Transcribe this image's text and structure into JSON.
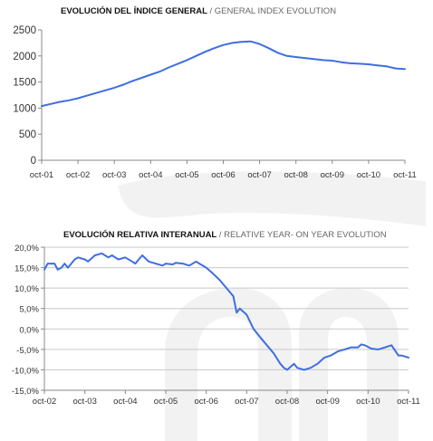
{
  "colors": {
    "line": "#3f6ee0",
    "axis": "#888888",
    "grid": "#c8c8c8",
    "watermark": "#f0f0f0"
  },
  "chart_data": [
    {
      "type": "line",
      "title_main": "EVOLUCIÓN DEL ÍNDICE GENERAL",
      "title_sep": " / ",
      "title_secondary": "GENERAL INDEX EVOLUTION",
      "xlabel": "",
      "ylabel": "",
      "ylim": [
        0,
        2500
      ],
      "yticks": [
        0,
        500,
        1000,
        1500,
        2000,
        2500
      ],
      "ytick_labels": [
        "0",
        "500",
        "1000",
        "1500",
        "2000",
        "2500"
      ],
      "xlim": [
        2001.75,
        2011.75
      ],
      "xticks": [
        2001.75,
        2002.75,
        2003.75,
        2004.75,
        2005.75,
        2006.75,
        2007.75,
        2008.75,
        2009.75,
        2010.75,
        2011.75
      ],
      "xtick_labels": [
        "oct-01",
        "oct-02",
        "oct-03",
        "oct-04",
        "oct-05",
        "oct-06",
        "oct-07",
        "oct-08",
        "oct-09",
        "oct-10",
        "oct-11"
      ],
      "grid": false,
      "series": [
        {
          "x": [
            2001.75,
            2002.0,
            2002.25,
            2002.5,
            2002.75,
            2003.0,
            2003.25,
            2003.5,
            2003.75,
            2004.0,
            2004.25,
            2004.5,
            2004.75,
            2005.0,
            2005.25,
            2005.5,
            2005.75,
            2006.0,
            2006.25,
            2006.5,
            2006.75,
            2007.0,
            2007.25,
            2007.5,
            2007.75,
            2008.0,
            2008.25,
            2008.5,
            2008.75,
            2009.0,
            2009.25,
            2009.5,
            2009.75,
            2010.0,
            2010.25,
            2010.5,
            2010.75,
            2011.0,
            2011.25,
            2011.5,
            2011.75
          ],
          "values": [
            1040,
            1080,
            1120,
            1150,
            1190,
            1240,
            1290,
            1340,
            1390,
            1450,
            1520,
            1580,
            1640,
            1700,
            1780,
            1850,
            1920,
            2000,
            2080,
            2150,
            2210,
            2250,
            2270,
            2280,
            2230,
            2150,
            2060,
            2000,
            1980,
            1960,
            1940,
            1920,
            1910,
            1880,
            1860,
            1850,
            1840,
            1820,
            1800,
            1760,
            1750
          ]
        }
      ]
    },
    {
      "type": "line",
      "title_main": "EVOLUCIÓN RELATIVA INTERANUAL",
      "title_sep": " / ",
      "title_secondary": "RELATIVE YEAR- ON YEAR EVOLUTION",
      "xlabel": "",
      "ylabel": "",
      "ylim": [
        -15,
        20
      ],
      "yticks": [
        -15,
        -10,
        -5,
        0,
        5,
        10,
        15,
        20
      ],
      "ytick_labels": [
        "-15,0%",
        "-10,0%",
        "-5,0%",
        "0,0%",
        "5,0%",
        "10,0%",
        "15,0%",
        "20,0%"
      ],
      "xlim": [
        2002.75,
        2011.75
      ],
      "xticks": [
        2002.75,
        2003.75,
        2004.75,
        2005.75,
        2006.75,
        2007.75,
        2008.75,
        2009.75,
        2010.75,
        2011.75
      ],
      "xtick_labels": [
        "oct-02",
        "oct-03",
        "oct-04",
        "oct-05",
        "oct-06",
        "oct-07",
        "oct-08",
        "oct-09",
        "oct-10",
        "oct-11"
      ],
      "grid": true,
      "series": [
        {
          "x": [
            2002.75,
            2002.83,
            2003.0,
            2003.08,
            2003.17,
            2003.25,
            2003.33,
            2003.5,
            2003.58,
            2003.75,
            2003.83,
            2004.0,
            2004.17,
            2004.33,
            2004.42,
            2004.58,
            2004.75,
            2004.92,
            2005.0,
            2005.08,
            2005.17,
            2005.33,
            2005.5,
            2005.67,
            2005.75,
            2005.92,
            2006.0,
            2006.17,
            2006.33,
            2006.5,
            2006.58,
            2006.75,
            2006.92,
            2007.08,
            2007.25,
            2007.42,
            2007.5,
            2007.58,
            2007.75,
            2007.92,
            2008.08,
            2008.25,
            2008.42,
            2008.58,
            2008.67,
            2008.75,
            2008.92,
            2009.0,
            2009.17,
            2009.33,
            2009.5,
            2009.67,
            2009.83,
            2010.0,
            2010.17,
            2010.33,
            2010.5,
            2010.58,
            2010.67,
            2010.83,
            2011.0,
            2011.17,
            2011.33,
            2011.5,
            2011.58,
            2011.75
          ],
          "values": [
            14.5,
            16.0,
            16.0,
            14.5,
            15.0,
            16.0,
            15.0,
            17.0,
            17.5,
            17.0,
            16.5,
            18.0,
            18.5,
            17.5,
            18.0,
            17.0,
            17.5,
            16.5,
            16.0,
            17.0,
            18.0,
            16.5,
            16.0,
            15.5,
            16.0,
            15.8,
            16.2,
            16.0,
            15.5,
            16.5,
            16.0,
            15.0,
            13.5,
            12.0,
            10.0,
            8.0,
            4.0,
            5.0,
            3.5,
            0.0,
            -2.0,
            -4.0,
            -6.0,
            -8.5,
            -9.5,
            -10.0,
            -8.5,
            -9.5,
            -10.0,
            -9.5,
            -8.5,
            -7.0,
            -6.5,
            -5.5,
            -5.0,
            -4.5,
            -4.5,
            -3.8,
            -4.0,
            -4.8,
            -5.0,
            -4.5,
            -4.0,
            -6.5,
            -6.5,
            -7.0
          ]
        }
      ]
    }
  ]
}
